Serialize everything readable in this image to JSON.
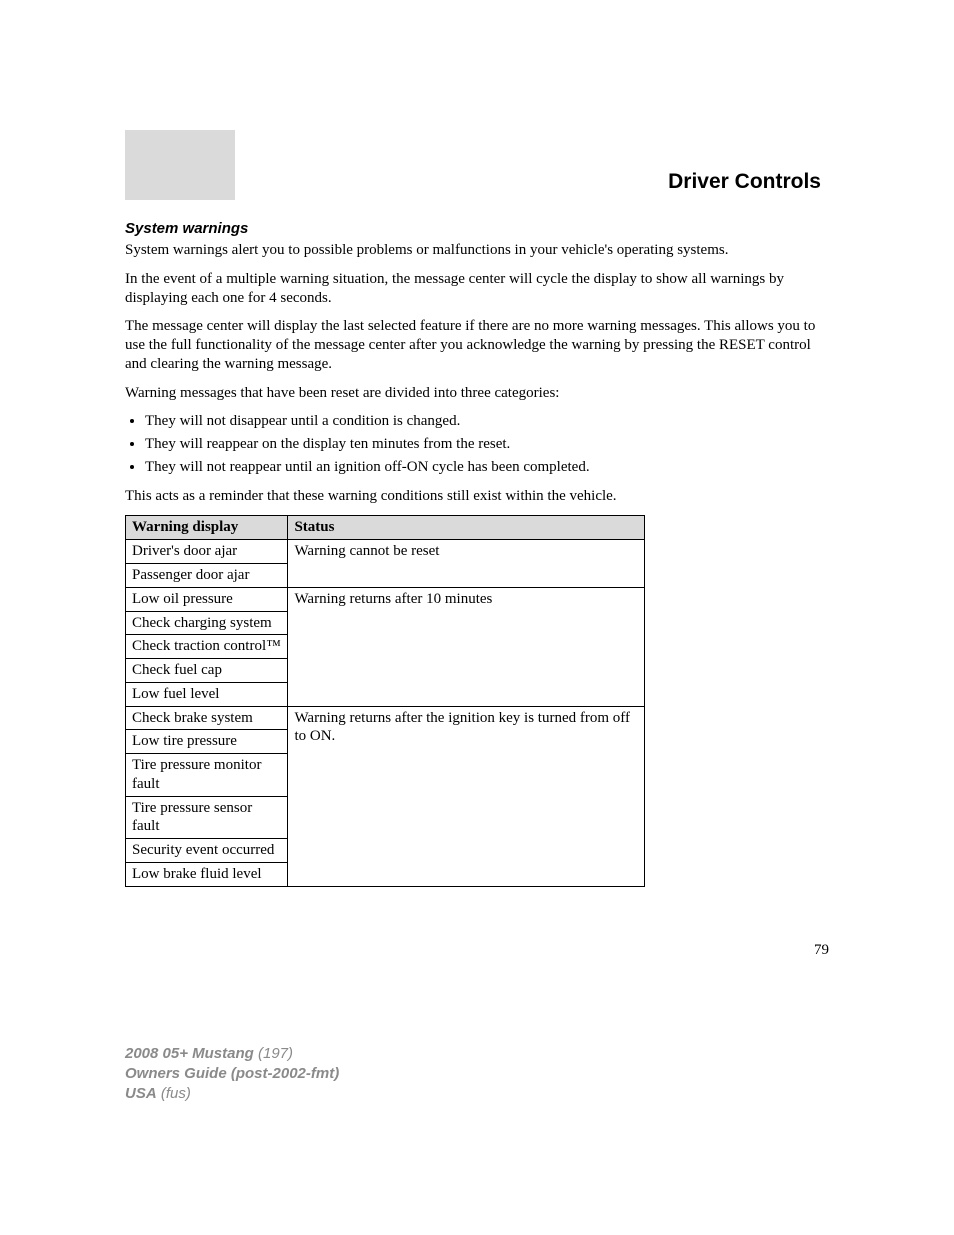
{
  "header": {
    "title": "Driver Controls"
  },
  "subheading": "System warnings",
  "paragraphs": {
    "p1": "System warnings alert you to possible problems or malfunctions in your vehicle's operating systems.",
    "p2": "In the event of a multiple warning situation, the message center will cycle the display to show all warnings by displaying each one for 4 seconds.",
    "p3": "The message center will display the last selected feature if there are no more warning messages. This allows you to use the full functionality of the message center after you acknowledge the warning by pressing the RESET control and clearing the warning message.",
    "p4": "Warning messages that have been reset are divided into three categories:",
    "p5": "This acts as a reminder that these warning conditions still exist within the vehicle."
  },
  "bullets": {
    "b1": "They will not disappear until a condition is changed.",
    "b2": "They will reappear on the display ten minutes from the reset.",
    "b3": "They will not reappear until an ignition off-ON cycle has been completed."
  },
  "table": {
    "columns": {
      "col1": "Warning display",
      "col2": "Status"
    },
    "rows": {
      "r1_left": "Driver's door ajar",
      "r1_right": "Warning cannot be reset",
      "r2_left": "Passenger door ajar",
      "r3_left": "Low oil pressure",
      "r3_right": "Warning returns after 10 minutes",
      "r4_left": "Check charging system",
      "r5_left": "Check traction control™",
      "r6_left": "Check fuel cap",
      "r7_left": "Low fuel level",
      "r8_left": "Check brake system",
      "r8_right": "Warning returns after the ignition key is turned from off to ON.",
      "r9_left": "Low tire pressure",
      "r10_left": "Tire pressure monitor fault",
      "r11_left": "Tire pressure sensor fault",
      "r12_left": "Security event occurred",
      "r13_left": "Low brake fluid level"
    }
  },
  "page_number": "79",
  "footer": {
    "line1_bold": "2008 05+ Mustang",
    "line1_ital": " (197)",
    "line2_bold": "Owners Guide (post-2002-fmt)",
    "line3_bold": "USA",
    "line3_ital": " (fus)"
  }
}
